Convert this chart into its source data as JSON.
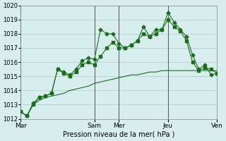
{
  "title": "",
  "xlabel": "Pression niveau de la mer( hPa )",
  "ylabel": "",
  "bg_color": "#d8eeee",
  "grid_color": "#aacccc",
  "line_color": "#1a6e1a",
  "ylim": [
    1012,
    1020
  ],
  "yticks": [
    1012,
    1013,
    1014,
    1015,
    1016,
    1017,
    1018,
    1019,
    1020
  ],
  "day_labels": [
    "Mar",
    "Sam",
    "Mer",
    "Jeu",
    "Ven"
  ],
  "day_positions": [
    0,
    36,
    48,
    72,
    96
  ],
  "series1_x": [
    0,
    3,
    6,
    9,
    12,
    15,
    18,
    21,
    24,
    27,
    30,
    33,
    36,
    39,
    42,
    45,
    48,
    51,
    54,
    57,
    60,
    63,
    66,
    69,
    72,
    75,
    78,
    81,
    84,
    87,
    90,
    93,
    96
  ],
  "series1_y": [
    1012.5,
    1012.2,
    1013.0,
    1013.3,
    1013.5,
    1013.6,
    1013.7,
    1013.8,
    1014.0,
    1014.1,
    1014.2,
    1014.3,
    1014.5,
    1014.6,
    1014.7,
    1014.8,
    1014.9,
    1015.0,
    1015.1,
    1015.1,
    1015.2,
    1015.3,
    1015.3,
    1015.4,
    1015.4,
    1015.4,
    1015.4,
    1015.4,
    1015.4,
    1015.4,
    1015.4,
    1015.4,
    1015.4
  ],
  "series2_x": [
    0,
    3,
    6,
    9,
    12,
    15,
    18,
    21,
    24,
    27,
    30,
    33,
    36,
    39,
    42,
    45,
    48,
    51,
    54,
    57,
    60,
    63,
    66,
    69,
    72,
    75,
    78,
    81,
    84,
    87,
    90,
    93,
    96
  ],
  "series2_y": [
    1012.5,
    1012.2,
    1013.1,
    1013.5,
    1013.6,
    1013.8,
    1015.5,
    1015.3,
    1015.1,
    1015.5,
    1016.1,
    1016.3,
    1016.2,
    1018.3,
    1018.0,
    1018.0,
    1017.3,
    1017.0,
    1017.2,
    1017.5,
    1018.5,
    1017.8,
    1018.3,
    1018.3,
    1019.5,
    1018.8,
    1018.3,
    1017.8,
    1016.5,
    1015.5,
    1015.8,
    1015.1,
    1015.2
  ],
  "series3_x": [
    0,
    3,
    6,
    9,
    12,
    15,
    18,
    21,
    24,
    27,
    30,
    33,
    36,
    39,
    42,
    45,
    48,
    51,
    54,
    57,
    60,
    63,
    66,
    69,
    72,
    75,
    78,
    81,
    84,
    87,
    90,
    93,
    96
  ],
  "series3_y": [
    1012.5,
    1012.2,
    1013.0,
    1013.5,
    1013.6,
    1013.8,
    1015.5,
    1015.2,
    1015.0,
    1015.3,
    1015.8,
    1016.0,
    1015.8,
    1016.4,
    1017.0,
    1017.4,
    1017.0,
    1017.0,
    1017.2,
    1017.5,
    1018.0,
    1017.8,
    1018.0,
    1018.3,
    1019.0,
    1018.5,
    1018.2,
    1017.5,
    1016.0,
    1015.4,
    1015.6,
    1015.5,
    1015.2
  ]
}
